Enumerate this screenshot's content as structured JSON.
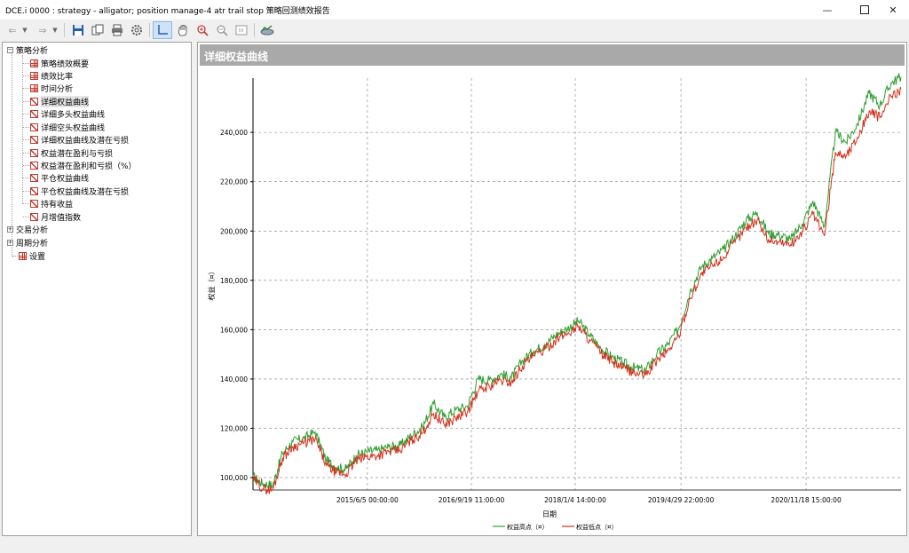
{
  "window": {
    "title": "DCE.i 0000 : strategy - alligator; position manage-4 atr trail stop 策略回测绩效报告"
  },
  "tree": {
    "root_label": "策略分析",
    "children": [
      {
        "label": "策略绩效概要",
        "icon": "grid-report-icon"
      },
      {
        "label": "绩效比率",
        "icon": "grid-report-icon"
      },
      {
        "label": "时间分析",
        "icon": "grid-report-icon"
      },
      {
        "label": "详细权益曲线",
        "icon": "chart-report-icon",
        "selected": true
      },
      {
        "label": "详细多头权益曲线",
        "icon": "chart-report-icon"
      },
      {
        "label": "详细空头权益曲线",
        "icon": "chart-report-icon"
      },
      {
        "label": "详细权益曲线及潜在亏损",
        "icon": "chart-report-icon"
      },
      {
        "label": "权益潜在盈利与亏损",
        "icon": "chart-report-icon"
      },
      {
        "label": "权益潜在盈利和亏损（%）",
        "icon": "chart-report-icon"
      },
      {
        "label": "平仓权益曲线",
        "icon": "chart-report-icon"
      },
      {
        "label": "平仓权益曲线及潜在亏损",
        "icon": "chart-report-icon"
      },
      {
        "label": "持有收益",
        "icon": "chart-report-icon"
      },
      {
        "label": "月增值指数",
        "icon": "chart-report-icon"
      }
    ],
    "siblings": [
      {
        "label": "交易分析",
        "expander": "+"
      },
      {
        "label": "周期分析",
        "expander": "+"
      },
      {
        "label": "设置",
        "expander": ""
      }
    ]
  },
  "panel": {
    "header": "详细权益曲线"
  },
  "colors": {
    "high_series": "#2e9e2e",
    "low_series": "#d4311e",
    "panel_header": "#a9a9a9",
    "grid": "#808080"
  },
  "chart_data": {
    "type": "line",
    "title": "",
    "xlabel": "日期",
    "ylabel": "权益（¤）",
    "ylim": [
      95000,
      262000
    ],
    "y_ticks": [
      100000,
      120000,
      140000,
      160000,
      180000,
      200000,
      220000,
      240000
    ],
    "y_tick_labels": [
      "100,000",
      "120,000",
      "140,000",
      "160,000",
      "180,000",
      "200,000",
      "220,000",
      "240,000"
    ],
    "x_range": [
      "2014-01-01",
      "2022-01-24"
    ],
    "x_ticks": [
      "2015-06-05 00:00",
      "2016-09-19 11:00",
      "2018-01-04 14:00",
      "2019-04-29 22:00",
      "2020-11-18 15:00"
    ],
    "x_tick_labels": [
      "2015/6/5 00:00:00",
      "2016/9/19 11:00:00",
      "2018/1/4 14:00:00",
      "2019/4/29 22:00:00",
      "2020/11/18 15:00:00"
    ],
    "grid": true,
    "legend_position": "bottom",
    "x": [
      "2014-01-01",
      "2014-02-15",
      "2014-04-01",
      "2014-05-15",
      "2014-07-01",
      "2014-08-20",
      "2014-10-10",
      "2014-12-01",
      "2015-01-15",
      "2015-03-01",
      "2015-04-15",
      "2015-06-01",
      "2015-07-20",
      "2015-09-10",
      "2015-11-01",
      "2015-12-20",
      "2016-02-10",
      "2016-04-01",
      "2016-05-20",
      "2016-07-10",
      "2016-09-01",
      "2016-10-20",
      "2016-12-10",
      "2017-02-01",
      "2017-03-20",
      "2017-05-10",
      "2017-07-01",
      "2017-08-20",
      "2017-10-10",
      "2017-12-01",
      "2018-01-20",
      "2018-03-10",
      "2018-05-01",
      "2018-06-20",
      "2018-08-10",
      "2018-10-01",
      "2018-11-20",
      "2019-01-10",
      "2019-03-01",
      "2019-04-20",
      "2019-06-10",
      "2019-08-01",
      "2019-09-20",
      "2019-11-10",
      "2020-01-01",
      "2020-02-20",
      "2020-04-10",
      "2020-06-01",
      "2020-07-20",
      "2020-09-10",
      "2020-11-01",
      "2020-12-20",
      "2021-02-10",
      "2021-04-01",
      "2021-05-20",
      "2021-07-10",
      "2021-09-01",
      "2021-10-20",
      "2021-12-10",
      "2022-01-24"
    ],
    "series": [
      {
        "name": "权益高点（¤）",
        "values": [
          100500,
          97500,
          97000,
          110000,
          114500,
          116000,
          118500,
          107000,
          104000,
          103500,
          109000,
          110500,
          111000,
          112500,
          113000,
          117000,
          120500,
          130000,
          124500,
          127500,
          129000,
          140000,
          139500,
          142000,
          140500,
          147500,
          151500,
          154000,
          158000,
          160500,
          163500,
          158000,
          152500,
          149000,
          146500,
          144500,
          143500,
          150000,
          154000,
          160500,
          175500,
          185500,
          189000,
          192500,
          198000,
          204500,
          207500,
          199000,
          198500,
          196500,
          203000,
          212000,
          202000,
          240000,
          236000,
          243500,
          256000,
          251000,
          260000,
          262500
        ]
      },
      {
        "name": "权益低点（¤）",
        "values": [
          99500,
          95500,
          95000,
          108000,
          112500,
          114000,
          115500,
          105000,
          102000,
          101500,
          107000,
          108500,
          109000,
          110500,
          111000,
          115000,
          118000,
          126000,
          121500,
          124000,
          126500,
          135000,
          137000,
          139500,
          138500,
          145500,
          149500,
          152000,
          156000,
          158500,
          161500,
          156000,
          150500,
          147000,
          144500,
          142500,
          141500,
          147500,
          151500,
          157500,
          172500,
          182500,
          186000,
          189500,
          195500,
          201500,
          204500,
          196500,
          195500,
          194500,
          199500,
          207000,
          198000,
          232000,
          230500,
          238000,
          248500,
          246000,
          254500,
          257500
        ]
      }
    ]
  }
}
